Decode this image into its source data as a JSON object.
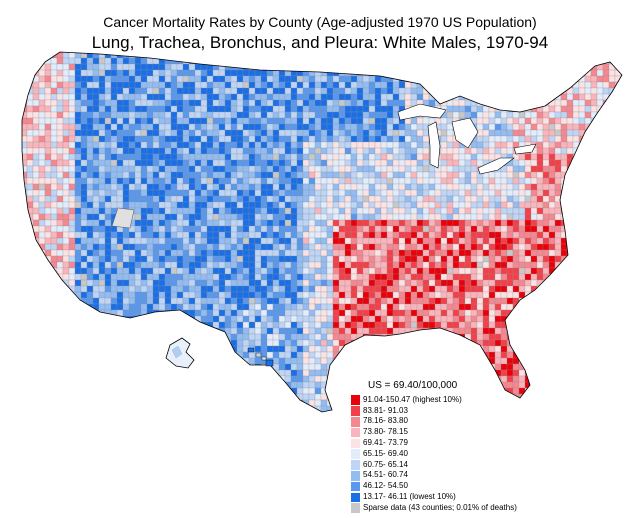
{
  "title": "Cancer Mortality Rates by County (Age-adjusted 1970 US Population)",
  "subtitle": "Lung, Trachea, Bronchus, and Pleura:  White Males, 1970-94",
  "legend": {
    "us_rate": "US = 69.40/100,000",
    "classes": [
      {
        "label": "91.04-150.47 (highest 10%)",
        "color": "#e8000b"
      },
      {
        "label": "83.81- 91.03",
        "color": "#f2404a"
      },
      {
        "label": "78.16- 83.80",
        "color": "#f58790"
      },
      {
        "label": "73.80- 78.15",
        "color": "#f9b5bb"
      },
      {
        "label": "69.41- 73.79",
        "color": "#fde2e4"
      },
      {
        "label": "65.15- 69.40",
        "color": "#e2ecfb"
      },
      {
        "label": "60.75- 65.14",
        "color": "#bed5f6"
      },
      {
        "label": "54.51- 60.74",
        "color": "#92bcf2"
      },
      {
        "label": "46.12- 54.50",
        "color": "#5a98ee"
      },
      {
        "label": "13.17- 46.11 (lowest 10%)",
        "color": "#1b6fe6"
      },
      {
        "label": "Sparse data (43 counties; 0.01% of deaths)",
        "color": "#c8c8c8"
      }
    ]
  }
}
